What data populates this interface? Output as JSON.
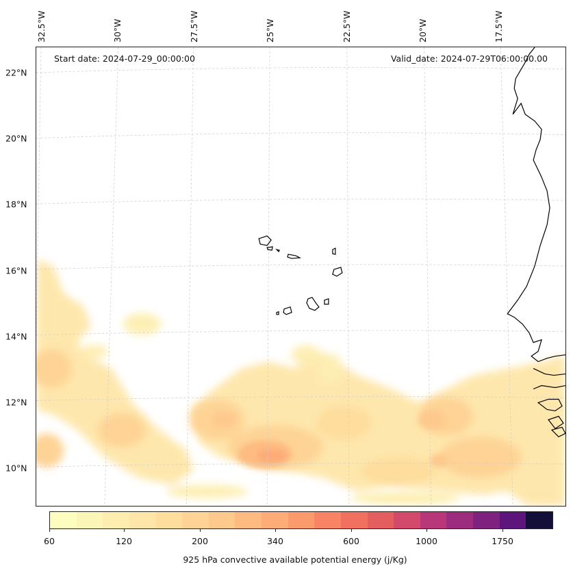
{
  "header": {
    "start_date": "Start date: 2024-07-29_00:00:00",
    "valid_date": "Valid_date: 2024-07-29T06:00:00.00"
  },
  "map": {
    "latitude_labels": [
      "22°N",
      "20°N",
      "18°N",
      "16°N",
      "14°N",
      "12°N",
      "10°N"
    ],
    "longitude_labels": [
      "32.5°W",
      "30°W",
      "27.5°W",
      "25°W",
      "22.5°W",
      "20°W",
      "17.5°W"
    ],
    "gridlines": "dashed",
    "land_colors": {
      "coastline": "#000000"
    }
  },
  "colorbar": {
    "ticks": [
      "60",
      "120",
      "200",
      "340",
      "600",
      "1000",
      "1750"
    ],
    "label": "925 hPa convective available potential energy (j/Kg)",
    "colors": [
      "#fcfdbf",
      "#fcf5b8",
      "#fdeeb0",
      "#fee6a8",
      "#fedd9d",
      "#fed395",
      "#fec98d",
      "#febb81",
      "#fdac77",
      "#fb9b6d",
      "#f88365",
      "#f1705f",
      "#e55e5f",
      "#d2496b",
      "#b73779",
      "#9b2c7e",
      "#7f227f",
      "#5e157b",
      "#140f38"
    ]
  }
}
